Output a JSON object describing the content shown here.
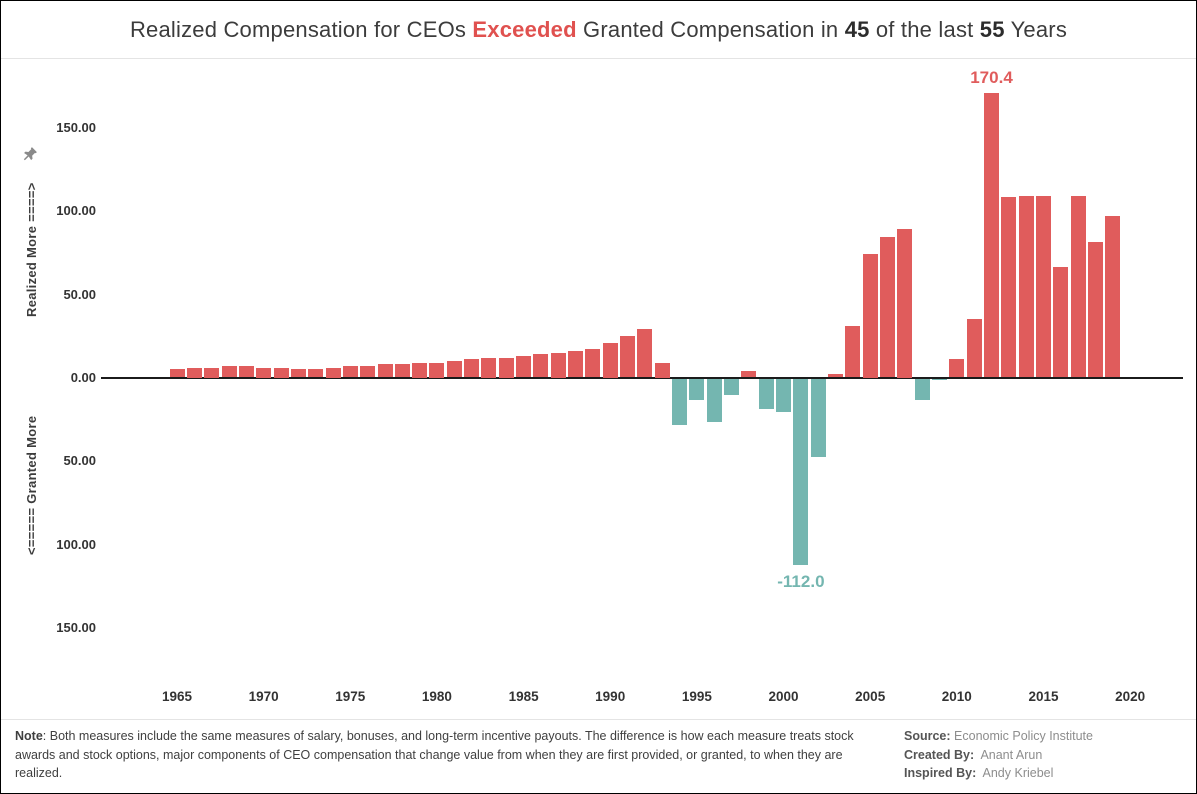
{
  "title": {
    "prefix": "Realized Compensation for CEOs ",
    "highlight": "Exceeded",
    "mid1": " Granted Compensation in ",
    "count": "45",
    "mid2": " of the last ",
    "total": "55",
    "suffix": " Years"
  },
  "colors": {
    "highlight_red": "#e0514f",
    "positive_bar": "#e05c5c",
    "negative_bar": "#74b6b0",
    "axis_text": "#333333"
  },
  "axis": {
    "left_top_label": "Realized More ====>",
    "left_bottom_label": "<===== Granted More",
    "y_ticks": [
      "150.00",
      "100.00",
      "50.00",
      "0.00",
      "50.00",
      "100.00",
      "150.00"
    ],
    "x_ticks": [
      "1965",
      "1970",
      "1975",
      "1980",
      "1985",
      "1990",
      "1995",
      "2000",
      "2005",
      "2010",
      "2015",
      "2020"
    ]
  },
  "footer": {
    "note_label": "Note",
    "note_text": ": Both measures include the same measures of salary, bonuses, and long-term incentive payouts. The difference is how each measure treats stock awards and stock options, major components of CEO compensation that change value from when they are first provided, or granted, to when they are realized.",
    "source_label": "Source:",
    "source_value": "Economic Policy Institute",
    "created_label": "Created By:",
    "created_value": "Anant Arun",
    "inspired_label": "Inspired By:",
    "inspired_value": "Andy Kriebel"
  },
  "chart_data": {
    "type": "bar",
    "title": "Realized Compensation for CEOs Exceeded Granted Compensation in 45 of the last 55 Years",
    "x": [
      1965,
      1966,
      1967,
      1968,
      1969,
      1970,
      1971,
      1972,
      1973,
      1974,
      1975,
      1976,
      1977,
      1978,
      1979,
      1980,
      1981,
      1982,
      1983,
      1984,
      1985,
      1986,
      1987,
      1988,
      1989,
      1990,
      1991,
      1992,
      1993,
      1994,
      1995,
      1996,
      1997,
      1998,
      1999,
      2000,
      2001,
      2002,
      2003,
      2004,
      2005,
      2006,
      2007,
      2008,
      2009,
      2010,
      2011,
      2012,
      2013,
      2014,
      2015,
      2016,
      2017,
      2018,
      2019
    ],
    "values": [
      5,
      6,
      6,
      7,
      7,
      6,
      6,
      5,
      5,
      6,
      7,
      7,
      8,
      8,
      9,
      9,
      10,
      11,
      12,
      12,
      13,
      14,
      15,
      16,
      17,
      21,
      25,
      29,
      9,
      -28,
      -13,
      -26,
      -10,
      4,
      -18,
      -20,
      -112,
      -47,
      2,
      31,
      74,
      84,
      89,
      -13,
      -1,
      11,
      35,
      170.4,
      108,
      109,
      109,
      66,
      109,
      81,
      97
    ],
    "xlabel": "",
    "ylabel": "",
    "ylim": [
      -190,
      190
    ],
    "y_tick_values": [
      150,
      100,
      50,
      0,
      -50,
      -100,
      -150
    ],
    "grid": false,
    "legend": "none",
    "positive_color": "#e05c5c",
    "negative_color": "#74b6b0",
    "annotations": [
      {
        "x": 2012,
        "label": "170.4",
        "color": "#e05c5c",
        "position": "above"
      },
      {
        "x": 2001,
        "label": "-112.0",
        "color": "#74b6b0",
        "position": "below"
      }
    ]
  }
}
